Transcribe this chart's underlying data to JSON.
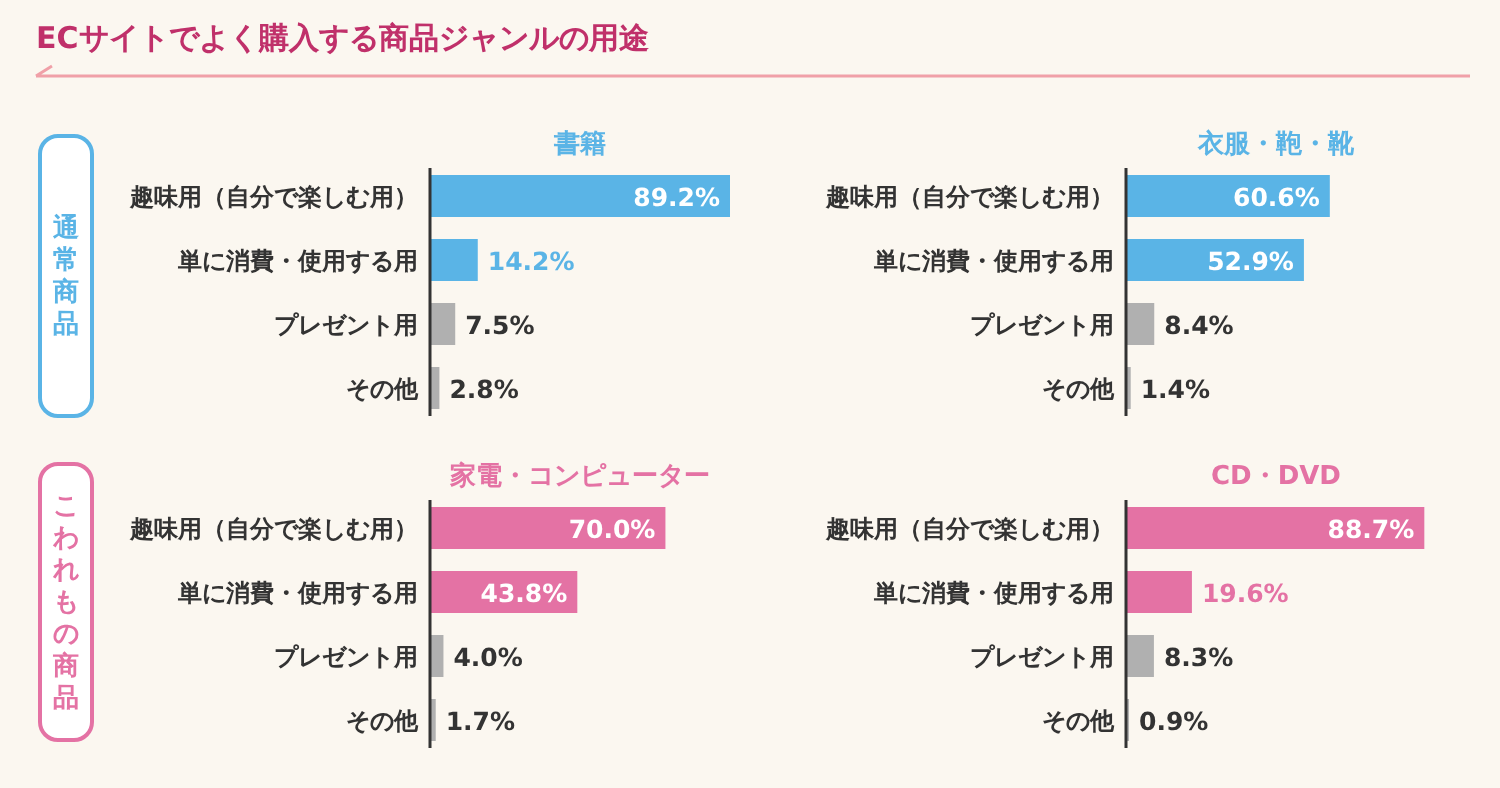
{
  "chart_data": [
    {
      "type": "bar",
      "orientation": "horizontal",
      "title": "書籍",
      "annotations": [
        "ECサイトでよく購入する商品ジャンルの用途",
        "通常商品"
      ],
      "categories": [
        "趣味用（自分で楽しむ用）",
        "単に消費・使用する用",
        "プレゼント用",
        "その他"
      ],
      "values": [
        89.2,
        14.2,
        7.5,
        2.8
      ],
      "colors": [
        "#5ab4e6",
        "#5ab4e6",
        "#b0b0b0",
        "#b0b0b0"
      ],
      "value_labels": [
        "89.2%",
        "14.2%",
        "7.5%",
        "2.8%"
      ]
    },
    {
      "type": "bar",
      "orientation": "horizontal",
      "title": "衣服・鞄・靴",
      "categories": [
        "趣味用（自分で楽しむ用）",
        "単に消費・使用する用",
        "プレゼント用",
        "その他"
      ],
      "values": [
        60.6,
        52.9,
        8.4,
        1.4
      ],
      "colors": [
        "#5ab4e6",
        "#5ab4e6",
        "#b0b0b0",
        "#b0b0b0"
      ],
      "value_labels": [
        "60.6%",
        "52.9%",
        "8.4%",
        "1.4%"
      ]
    },
    {
      "type": "bar",
      "orientation": "horizontal",
      "title": "家電・コンピューター",
      "annotations": [
        "こわれもの商品"
      ],
      "categories": [
        "趣味用（自分で楽しむ用）",
        "単に消費・使用する用",
        "プレゼント用",
        "その他"
      ],
      "values": [
        70.0,
        43.8,
        4.0,
        1.7
      ],
      "colors": [
        "#e472a4",
        "#e472a4",
        "#b0b0b0",
        "#b0b0b0"
      ],
      "value_labels": [
        "70.0%",
        "43.8%",
        "4.0%",
        "1.7%"
      ]
    },
    {
      "type": "bar",
      "orientation": "horizontal",
      "title": "CD・DVD",
      "categories": [
        "趣味用（自分で楽しむ用）",
        "単に消費・使用する用",
        "プレゼント用",
        "その他"
      ],
      "values": [
        88.7,
        19.6,
        8.3,
        0.9
      ],
      "colors": [
        "#e472a4",
        "#e472a4",
        "#b0b0b0",
        "#b0b0b0"
      ],
      "value_labels": [
        "88.7%",
        "19.6%",
        "8.3%",
        "0.9%"
      ]
    }
  ]
}
